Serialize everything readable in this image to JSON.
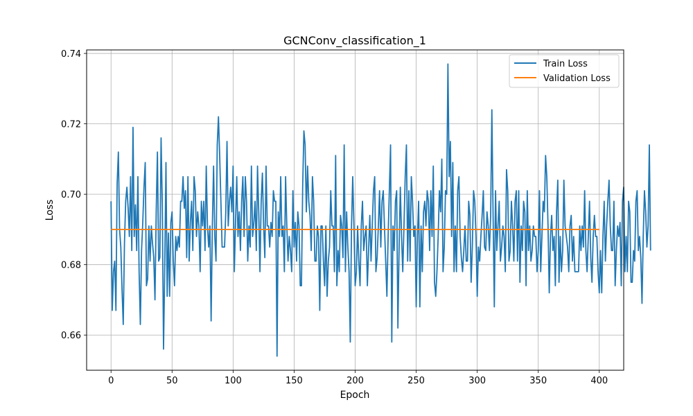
{
  "chart_data": {
    "type": "line",
    "title": "GCNConv_classification_1",
    "xlabel": "Epoch",
    "ylabel": "Loss",
    "xlim": [
      -20,
      420
    ],
    "ylim": [
      0.65,
      0.741
    ],
    "x_ticks": [
      0,
      50,
      100,
      150,
      200,
      250,
      300,
      350,
      400
    ],
    "y_ticks": [
      0.66,
      0.68,
      0.7,
      0.72,
      0.74
    ],
    "y_tick_labels": [
      "0.66",
      "0.68",
      "0.70",
      "0.72",
      "0.74"
    ],
    "grid": true,
    "legend_position": "top-right",
    "series": [
      {
        "name": "Train Loss",
        "color": "#1f77b4",
        "x_start": 0,
        "x_step": 1,
        "values": [
          0.698,
          0.667,
          0.678,
          0.681,
          0.667,
          0.703,
          0.712,
          0.69,
          0.685,
          0.673,
          0.663,
          0.686,
          0.698,
          0.702,
          0.696,
          0.688,
          0.705,
          0.684,
          0.719,
          0.688,
          0.697,
          0.684,
          0.705,
          0.678,
          0.663,
          0.684,
          0.692,
          0.702,
          0.709,
          0.674,
          0.676,
          0.691,
          0.681,
          0.691,
          0.686,
          0.682,
          0.67,
          0.695,
          0.712,
          0.681,
          0.682,
          0.716,
          0.697,
          0.656,
          0.679,
          0.709,
          0.671,
          0.689,
          0.671,
          0.692,
          0.695,
          0.681,
          0.674,
          0.688,
          0.684,
          0.688,
          0.685,
          0.698,
          0.698,
          0.705,
          0.696,
          0.701,
          0.682,
          0.705,
          0.681,
          0.692,
          0.698,
          0.684,
          0.705,
          0.701,
          0.688,
          0.695,
          0.691,
          0.678,
          0.698,
          0.691,
          0.698,
          0.684,
          0.708,
          0.691,
          0.685,
          0.691,
          0.664,
          0.691,
          0.708,
          0.688,
          0.681,
          0.714,
          0.722,
          0.711,
          0.698,
          0.685,
          0.685,
          0.685,
          0.695,
          0.715,
          0.691,
          0.698,
          0.702,
          0.695,
          0.708,
          0.678,
          0.692,
          0.705,
          0.688,
          0.695,
          0.684,
          0.698,
          0.705,
          0.688,
          0.705,
          0.698,
          0.681,
          0.691,
          0.685,
          0.708,
          0.688,
          0.692,
          0.698,
          0.684,
          0.708,
          0.695,
          0.678,
          0.698,
          0.706,
          0.691,
          0.682,
          0.708,
          0.691,
          0.691,
          0.685,
          0.692,
          0.688,
          0.701,
          0.698,
          0.698,
          0.654,
          0.695,
          0.688,
          0.705,
          0.688,
          0.691,
          0.678,
          0.705,
          0.691,
          0.681,
          0.688,
          0.684,
          0.678,
          0.701,
          0.685,
          0.692,
          0.681,
          0.695,
          0.691,
          0.674,
          0.674,
          0.702,
          0.718,
          0.714,
          0.695,
          0.708,
          0.698,
          0.694,
          0.684,
          0.705,
          0.698,
          0.681,
          0.681,
          0.691,
          0.688,
          0.667,
          0.691,
          0.691,
          0.681,
          0.674,
          0.691,
          0.671,
          0.681,
          0.685,
          0.701,
          0.691,
          0.691,
          0.678,
          0.711,
          0.674,
          0.684,
          0.678,
          0.694,
          0.691,
          0.682,
          0.714,
          0.678,
          0.695,
          0.685,
          0.678,
          0.658,
          0.691,
          0.705,
          0.691,
          0.674,
          0.678,
          0.691,
          0.681,
          0.674,
          0.691,
          0.698,
          0.684,
          0.688,
          0.691,
          0.674,
          0.684,
          0.694,
          0.681,
          0.691,
          0.701,
          0.705,
          0.678,
          0.682,
          0.691,
          0.701,
          0.685,
          0.698,
          0.701,
          0.691,
          0.681,
          0.671,
          0.688,
          0.701,
          0.714,
          0.658,
          0.691,
          0.684,
          0.698,
          0.701,
          0.662,
          0.685,
          0.702,
          0.688,
          0.678,
          0.691,
          0.705,
          0.714,
          0.681,
          0.701,
          0.681,
          0.705,
          0.698,
          0.688,
          0.691,
          0.668,
          0.688,
          0.698,
          0.668,
          0.691,
          0.678,
          0.695,
          0.698,
          0.691,
          0.701,
          0.698,
          0.684,
          0.701,
          0.688,
          0.708,
          0.675,
          0.671,
          0.678,
          0.688,
          0.701,
          0.695,
          0.71,
          0.678,
          0.685,
          0.701,
          0.7,
          0.737,
          0.705,
          0.715,
          0.688,
          0.709,
          0.678,
          0.691,
          0.678,
          0.701,
          0.705,
          0.688,
          0.682,
          0.678,
          0.684,
          0.691,
          0.681,
          0.681,
          0.698,
          0.694,
          0.675,
          0.685,
          0.701,
          0.698,
          0.688,
          0.671,
          0.685,
          0.681,
          0.688,
          0.694,
          0.701,
          0.685,
          0.684,
          0.695,
          0.691,
          0.684,
          0.694,
          0.724,
          0.694,
          0.668,
          0.701,
          0.684,
          0.691,
          0.698,
          0.681,
          0.685,
          0.691,
          0.688,
          0.678,
          0.707,
          0.701,
          0.681,
          0.684,
          0.698,
          0.691,
          0.681,
          0.698,
          0.701,
          0.681,
          0.701,
          0.675,
          0.691,
          0.684,
          0.698,
          0.695,
          0.674,
          0.701,
          0.684,
          0.691,
          0.681,
          0.684,
          0.691,
          0.688,
          0.688,
          0.678,
          0.684,
          0.701,
          0.678,
          0.688,
          0.698,
          0.695,
          0.711,
          0.705,
          0.691,
          0.672,
          0.688,
          0.694,
          0.684,
          0.688,
          0.674,
          0.695,
          0.704,
          0.675,
          0.688,
          0.678,
          0.684,
          0.704,
          0.691,
          0.688,
          0.685,
          0.678,
          0.691,
          0.694,
          0.681,
          0.688,
          0.678,
          0.678,
          0.678,
          0.678,
          0.691,
          0.684,
          0.691,
          0.685,
          0.701,
          0.684,
          0.678,
          0.688,
          0.698,
          0.682,
          0.675,
          0.688,
          0.694,
          0.688,
          0.688,
          0.678,
          0.672,
          0.684,
          0.672,
          0.688,
          0.698,
          0.681,
          0.691,
          0.698,
          0.704,
          0.691,
          0.684,
          0.684,
          0.698,
          0.674,
          0.684,
          0.691,
          0.688,
          0.692,
          0.674,
          0.698,
          0.702,
          0.678,
          0.688,
          0.678,
          0.698,
          0.695,
          0.675,
          0.675,
          0.684,
          0.681,
          0.698,
          0.701,
          0.684,
          0.688,
          0.682,
          0.669,
          0.688,
          0.701,
          0.695,
          0.685,
          0.691,
          0.714,
          0.684
        ]
      },
      {
        "name": "Validation Loss",
        "color": "#ff7f0e",
        "x": [
          0,
          400
        ],
        "values": [
          0.69,
          0.69
        ]
      }
    ]
  }
}
